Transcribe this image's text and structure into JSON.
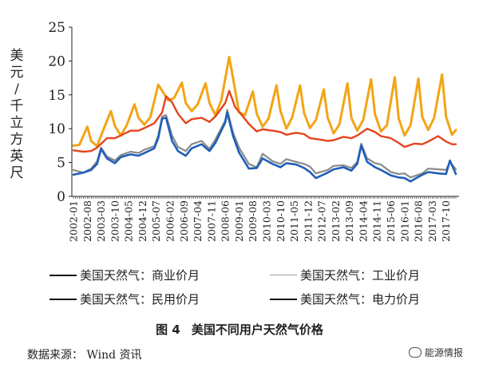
{
  "chart_data": {
    "type": "line",
    "title": "美国不同用户天然气价格",
    "figure_label": "图 4",
    "ylabel": "美元/千立方英尺",
    "ylabel_chars": [
      "美",
      "元",
      "/",
      "千",
      "立",
      "方",
      "英",
      "尺"
    ],
    "ylim": [
      0,
      25
    ],
    "yticks": [
      "0",
      "5",
      "10",
      "15",
      "20",
      "25"
    ],
    "grid": false,
    "xtick_labels": [
      "2002-01",
      "2002-08",
      "2003-03",
      "2003-10",
      "2004-05",
      "2004-12",
      "2005-07",
      "2006-02",
      "2006-09",
      "2007-04",
      "2007-11",
      "2008-06",
      "2009-01",
      "2009-08",
      "2010-03",
      "2010-10",
      "2011-05",
      "2011-12",
      "2012-07",
      "2013-02",
      "2013-09",
      "2014-04",
      "2014-11",
      "2015-06",
      "2016-01",
      "2016-08",
      "2017-03",
      "2017-10"
    ],
    "x_start": "2002-01",
    "x_end": "2018-03",
    "series": [
      {
        "name": "美国天然气：民用价月",
        "color": "#f2a515",
        "points": [
          [
            "2002-01",
            7.5
          ],
          [
            "2002-04",
            7.6
          ],
          [
            "2002-08",
            10.3
          ],
          [
            "2002-10",
            8.2
          ],
          [
            "2003-01",
            7.4
          ],
          [
            "2003-04",
            9.7
          ],
          [
            "2003-08",
            12.6
          ],
          [
            "2003-10",
            10.4
          ],
          [
            "2004-01",
            9.0
          ],
          [
            "2004-04",
            10.5
          ],
          [
            "2004-08",
            13.6
          ],
          [
            "2004-10",
            11.6
          ],
          [
            "2005-01",
            10.6
          ],
          [
            "2005-04",
            11.7
          ],
          [
            "2005-08",
            16.5
          ],
          [
            "2005-10",
            15.6
          ],
          [
            "2006-01",
            14.2
          ],
          [
            "2006-04",
            14.5
          ],
          [
            "2006-08",
            16.8
          ],
          [
            "2006-10",
            13.8
          ],
          [
            "2007-01",
            12.6
          ],
          [
            "2007-04",
            13.6
          ],
          [
            "2007-08",
            16.7
          ],
          [
            "2007-10",
            13.8
          ],
          [
            "2008-01",
            12.0
          ],
          [
            "2008-04",
            14.2
          ],
          [
            "2008-08",
            20.6
          ],
          [
            "2008-10",
            17.4
          ],
          [
            "2009-01",
            12.4
          ],
          [
            "2009-04",
            12.0
          ],
          [
            "2009-08",
            15.5
          ],
          [
            "2009-10",
            12.2
          ],
          [
            "2010-01",
            10.3
          ],
          [
            "2010-04",
            11.5
          ],
          [
            "2010-08",
            16.4
          ],
          [
            "2010-10",
            12.6
          ],
          [
            "2011-01",
            10.0
          ],
          [
            "2011-04",
            11.7
          ],
          [
            "2011-08",
            16.4
          ],
          [
            "2011-10",
            12.3
          ],
          [
            "2012-01",
            10.1
          ],
          [
            "2012-04",
            11.3
          ],
          [
            "2012-08",
            15.8
          ],
          [
            "2012-10",
            11.6
          ],
          [
            "2013-01",
            9.3
          ],
          [
            "2013-04",
            10.7
          ],
          [
            "2013-08",
            16.7
          ],
          [
            "2013-10",
            11.6
          ],
          [
            "2014-01",
            9.7
          ],
          [
            "2014-04",
            11.3
          ],
          [
            "2014-08",
            17.3
          ],
          [
            "2014-10",
            12.1
          ],
          [
            "2015-01",
            9.6
          ],
          [
            "2015-04",
            10.5
          ],
          [
            "2015-08",
            17.6
          ],
          [
            "2015-10",
            11.5
          ],
          [
            "2016-01",
            9.0
          ],
          [
            "2016-04",
            10.5
          ],
          [
            "2016-08",
            17.4
          ],
          [
            "2016-10",
            11.7
          ],
          [
            "2017-01",
            9.8
          ],
          [
            "2017-04",
            11.6
          ],
          [
            "2017-08",
            18.0
          ],
          [
            "2017-10",
            11.8
          ],
          [
            "2018-01",
            9.1
          ],
          [
            "2018-03",
            9.8
          ]
        ]
      },
      {
        "name": "美国天然气：商业价月",
        "color": "#e4441c",
        "points": [
          [
            "2002-01",
            6.8
          ],
          [
            "2002-06",
            6.6
          ],
          [
            "2002-10",
            6.7
          ],
          [
            "2003-01",
            7.2
          ],
          [
            "2003-06",
            8.6
          ],
          [
            "2003-10",
            8.6
          ],
          [
            "2004-01",
            9.0
          ],
          [
            "2004-06",
            9.7
          ],
          [
            "2004-10",
            9.7
          ],
          [
            "2005-01",
            10.1
          ],
          [
            "2005-06",
            10.8
          ],
          [
            "2005-10",
            12.4
          ],
          [
            "2005-12",
            14.8
          ],
          [
            "2006-03",
            13.9
          ],
          [
            "2006-06",
            12.2
          ],
          [
            "2006-10",
            10.8
          ],
          [
            "2007-01",
            11.4
          ],
          [
            "2007-06",
            11.6
          ],
          [
            "2007-10",
            11.0
          ],
          [
            "2008-01",
            11.8
          ],
          [
            "2008-06",
            13.8
          ],
          [
            "2008-08",
            15.6
          ],
          [
            "2008-11",
            13.2
          ],
          [
            "2009-03",
            11.8
          ],
          [
            "2009-06",
            10.7
          ],
          [
            "2009-10",
            9.6
          ],
          [
            "2010-01",
            9.9
          ],
          [
            "2010-06",
            9.7
          ],
          [
            "2010-10",
            9.5
          ],
          [
            "2011-01",
            9.1
          ],
          [
            "2011-06",
            9.4
          ],
          [
            "2011-10",
            9.2
          ],
          [
            "2012-01",
            8.6
          ],
          [
            "2012-06",
            8.4
          ],
          [
            "2012-10",
            8.2
          ],
          [
            "2013-01",
            8.3
          ],
          [
            "2013-06",
            8.8
          ],
          [
            "2013-10",
            8.6
          ],
          [
            "2014-01",
            9.0
          ],
          [
            "2014-06",
            10.0
          ],
          [
            "2014-10",
            9.5
          ],
          [
            "2015-01",
            8.9
          ],
          [
            "2015-06",
            8.6
          ],
          [
            "2015-10",
            7.9
          ],
          [
            "2016-01",
            7.3
          ],
          [
            "2016-06",
            7.8
          ],
          [
            "2016-10",
            7.7
          ],
          [
            "2017-01",
            8.1
          ],
          [
            "2017-06",
            8.9
          ],
          [
            "2017-10",
            8.1
          ],
          [
            "2018-01",
            7.7
          ],
          [
            "2018-03",
            7.7
          ]
        ]
      },
      {
        "name": "美国天然气：工业价月",
        "color": "#8a8a8a",
        "points": [
          [
            "2002-01",
            3.9
          ],
          [
            "2002-06",
            3.5
          ],
          [
            "2002-10",
            4.1
          ],
          [
            "2003-01",
            5.2
          ],
          [
            "2003-03",
            7.2
          ],
          [
            "2003-06",
            5.9
          ],
          [
            "2003-10",
            5.3
          ],
          [
            "2004-01",
            6.1
          ],
          [
            "2004-06",
            6.6
          ],
          [
            "2004-10",
            6.4
          ],
          [
            "2005-01",
            6.9
          ],
          [
            "2005-06",
            7.4
          ],
          [
            "2005-08",
            9.0
          ],
          [
            "2005-10",
            11.8
          ],
          [
            "2005-12",
            12.0
          ],
          [
            "2006-03",
            9.0
          ],
          [
            "2006-06",
            7.3
          ],
          [
            "2006-10",
            6.7
          ],
          [
            "2007-01",
            7.7
          ],
          [
            "2007-06",
            8.2
          ],
          [
            "2007-10",
            7.0
          ],
          [
            "2008-01",
            8.4
          ],
          [
            "2008-06",
            11.2
          ],
          [
            "2008-07",
            12.8
          ],
          [
            "2008-10",
            9.4
          ],
          [
            "2009-01",
            7.2
          ],
          [
            "2009-06",
            4.8
          ],
          [
            "2009-10",
            4.3
          ],
          [
            "2010-01",
            6.3
          ],
          [
            "2010-06",
            5.2
          ],
          [
            "2010-10",
            4.8
          ],
          [
            "2011-01",
            5.5
          ],
          [
            "2011-06",
            5.1
          ],
          [
            "2011-10",
            4.8
          ],
          [
            "2012-01",
            4.4
          ],
          [
            "2012-04",
            3.4
          ],
          [
            "2012-10",
            3.9
          ],
          [
            "2013-01",
            4.5
          ],
          [
            "2013-06",
            4.6
          ],
          [
            "2013-10",
            4.2
          ],
          [
            "2014-01",
            5.1
          ],
          [
            "2014-03",
            7.8
          ],
          [
            "2014-06",
            5.6
          ],
          [
            "2014-10",
            4.9
          ],
          [
            "2015-01",
            4.7
          ],
          [
            "2015-06",
            3.6
          ],
          [
            "2015-10",
            3.3
          ],
          [
            "2016-01",
            3.4
          ],
          [
            "2016-04",
            2.8
          ],
          [
            "2016-10",
            3.4
          ],
          [
            "2017-01",
            4.1
          ],
          [
            "2017-06",
            4.0
          ],
          [
            "2017-10",
            3.9
          ],
          [
            "2017-12",
            5.1
          ],
          [
            "2018-03",
            4.0
          ]
        ]
      },
      {
        "name": "美国天然气：电力价月",
        "color": "#1f5fb8",
        "points": [
          [
            "2002-01",
            3.2
          ],
          [
            "2002-06",
            3.5
          ],
          [
            "2002-10",
            3.9
          ],
          [
            "2003-01",
            4.8
          ],
          [
            "2003-03",
            7.0
          ],
          [
            "2003-06",
            5.6
          ],
          [
            "2003-10",
            4.9
          ],
          [
            "2004-01",
            5.8
          ],
          [
            "2004-06",
            6.2
          ],
          [
            "2004-10",
            6.0
          ],
          [
            "2005-01",
            6.4
          ],
          [
            "2005-06",
            7.1
          ],
          [
            "2005-08",
            8.6
          ],
          [
            "2005-10",
            11.5
          ],
          [
            "2005-12",
            11.6
          ],
          [
            "2006-03",
            8.2
          ],
          [
            "2006-06",
            6.7
          ],
          [
            "2006-10",
            6.0
          ],
          [
            "2007-01",
            7.1
          ],
          [
            "2007-06",
            7.7
          ],
          [
            "2007-10",
            6.7
          ],
          [
            "2008-01",
            7.9
          ],
          [
            "2008-06",
            10.9
          ],
          [
            "2008-07",
            12.4
          ],
          [
            "2008-10",
            8.9
          ],
          [
            "2009-01",
            6.5
          ],
          [
            "2009-06",
            4.1
          ],
          [
            "2009-10",
            4.2
          ],
          [
            "2010-01",
            5.6
          ],
          [
            "2010-06",
            4.8
          ],
          [
            "2010-10",
            4.3
          ],
          [
            "2011-01",
            4.9
          ],
          [
            "2011-06",
            4.7
          ],
          [
            "2011-10",
            4.2
          ],
          [
            "2012-01",
            3.6
          ],
          [
            "2012-04",
            2.7
          ],
          [
            "2012-10",
            3.5
          ],
          [
            "2013-01",
            4.0
          ],
          [
            "2013-06",
            4.3
          ],
          [
            "2013-10",
            3.8
          ],
          [
            "2014-01",
            4.8
          ],
          [
            "2014-03",
            7.5
          ],
          [
            "2014-06",
            5.1
          ],
          [
            "2014-10",
            4.3
          ],
          [
            "2015-01",
            3.9
          ],
          [
            "2015-06",
            3.1
          ],
          [
            "2015-10",
            2.8
          ],
          [
            "2016-01",
            2.7
          ],
          [
            "2016-04",
            2.2
          ],
          [
            "2016-10",
            3.2
          ],
          [
            "2017-01",
            3.6
          ],
          [
            "2017-06",
            3.4
          ],
          [
            "2017-10",
            3.3
          ],
          [
            "2017-12",
            5.3
          ],
          [
            "2018-03",
            3.3
          ]
        ]
      }
    ],
    "legend": [
      {
        "label": "美国天然气：商业价月",
        "color": "#111111"
      },
      {
        "label": "美国天然气：工业价月",
        "color": "#9a9a9a"
      },
      {
        "label": "美国天然气：民用价月",
        "color": "#111111"
      },
      {
        "label": "美国天然气：电力价月",
        "color": "#111111"
      }
    ],
    "source": "数据来源：  Wind 资讯"
  },
  "watermark": "能源情报"
}
